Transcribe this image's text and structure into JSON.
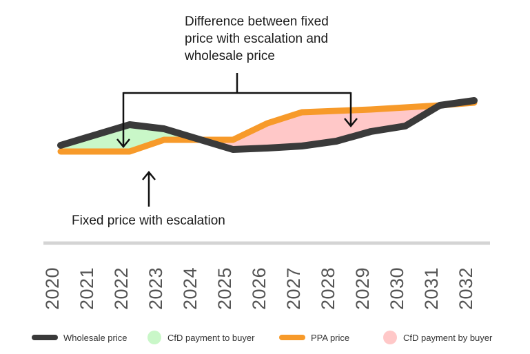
{
  "chart_data": {
    "type": "line",
    "categories": [
      "2020",
      "2021",
      "2022",
      "2023",
      "2024",
      "2025",
      "2026",
      "2027",
      "2028",
      "2029",
      "2030",
      "2031",
      "2032"
    ],
    "series": [
      {
        "name": "Wholesale price",
        "color": "#3a3a3a",
        "values": [
          44.5,
          52,
          59.5,
          56.5,
          49,
          41.5,
          42.5,
          44,
          47.5,
          54.5,
          58.5,
          73.5,
          77
        ]
      },
      {
        "name": "PPA price",
        "color": "#f79a2a",
        "values": [
          40,
          40,
          40,
          48.5,
          48.5,
          48.5,
          60.5,
          68.5,
          69.5,
          70.5,
          72,
          73.5,
          75.5
        ]
      }
    ],
    "fill_between": [
      {
        "name": "CfD payment to buyer",
        "color": "#c9f7c8",
        "description_from_legend": true
      },
      {
        "name": "CfD payment by buyer",
        "color": "#ffc8c8",
        "description_from_legend": true
      }
    ],
    "annotations": [
      {
        "lines": [
          "Difference between fixed",
          "price with escalation and",
          "wholesale price"
        ]
      },
      {
        "lines": [
          "Fixed price with escalation"
        ]
      }
    ],
    "legend_position": "bottom",
    "grid": false,
    "ylim": [
      0,
      100
    ]
  },
  "legend": {
    "wholesale": "Wholesale price",
    "cfd_to": "CfD payment to buyer",
    "ppa": "PPA price",
    "cfd_by": "CfD payment by buyer"
  },
  "colors": {
    "wholesale": "#3a3a3a",
    "ppa": "#f79a2a",
    "cfd_to": "#c9f7c8",
    "cfd_by": "#ffc8c8",
    "axis": "#d4d4d4"
  }
}
